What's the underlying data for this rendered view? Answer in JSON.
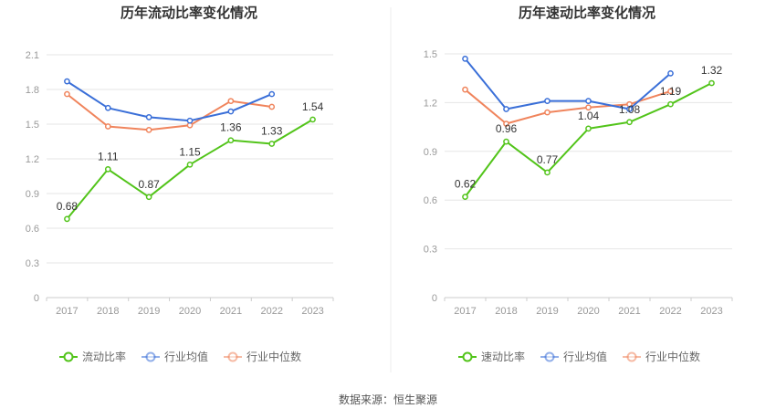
{
  "chart_data": [
    {
      "type": "line",
      "title": "历年流动比率变化情况",
      "categories": [
        "2017",
        "2018",
        "2019",
        "2020",
        "2021",
        "2022",
        "2023"
      ],
      "ylim": [
        0,
        2.1
      ],
      "yticks": [
        "0",
        "0.3",
        "0.6",
        "0.9",
        "1.2",
        "1.5",
        "1.8",
        "2.1"
      ],
      "grid": true,
      "series": [
        {
          "name": "流动比率",
          "color": "#52c41a",
          "values": [
            0.68,
            1.11,
            0.87,
            1.15,
            1.36,
            1.33,
            1.54
          ],
          "labels": [
            "0.68",
            "1.11",
            "0.87",
            "1.15",
            "1.36",
            "1.33",
            "1.54"
          ]
        },
        {
          "name": "行业均值",
          "color": "#3a6fd8",
          "values": [
            1.87,
            1.64,
            1.56,
            1.53,
            1.61,
            1.76,
            null
          ]
        },
        {
          "name": "行业中位数",
          "color": "#f0845c",
          "values": [
            1.76,
            1.48,
            1.45,
            1.49,
            1.7,
            1.65,
            null
          ]
        }
      ]
    },
    {
      "type": "line",
      "title": "历年速动比率变化情况",
      "categories": [
        "2017",
        "2018",
        "2019",
        "2020",
        "2021",
        "2022",
        "2023"
      ],
      "ylim": [
        0,
        1.5
      ],
      "yticks": [
        "0",
        "0.3",
        "0.6",
        "0.9",
        "1.2",
        "1.5"
      ],
      "grid": true,
      "series": [
        {
          "name": "速动比率",
          "color": "#52c41a",
          "values": [
            0.62,
            0.96,
            0.77,
            1.04,
            1.08,
            1.19,
            1.32
          ],
          "labels": [
            "0.62",
            "0.96",
            "0.77",
            "1.04",
            "1.08",
            "1.19",
            "1.32"
          ]
        },
        {
          "name": "行业均值",
          "color": "#3a6fd8",
          "values": [
            1.47,
            1.16,
            1.21,
            1.21,
            1.16,
            1.38,
            null
          ]
        },
        {
          "name": "行业中位数",
          "color": "#f0845c",
          "values": [
            1.28,
            1.07,
            1.14,
            1.17,
            1.19,
            1.27,
            null
          ]
        }
      ]
    }
  ],
  "source": "数据来源：恒生聚源"
}
